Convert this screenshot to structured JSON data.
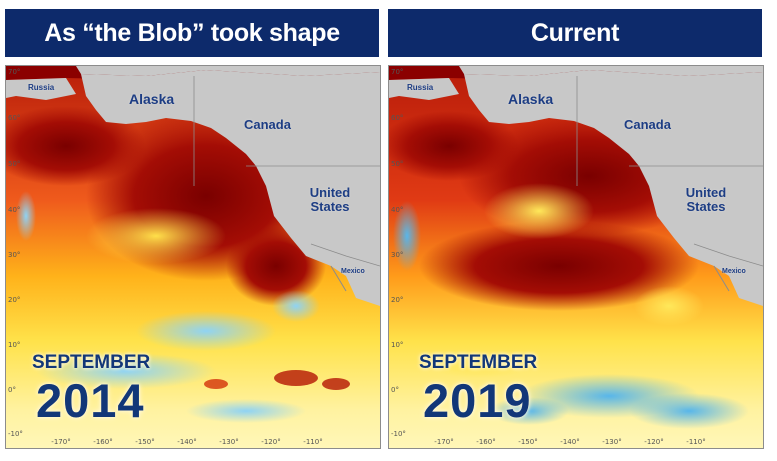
{
  "panels": [
    {
      "title": "As “the Blob” took shape",
      "month": "SEPTEMBER",
      "year": "2014"
    },
    {
      "title": "Current",
      "month": "SEPTEMBER",
      "year": "2019"
    }
  ],
  "regions": {
    "russia": "Russia",
    "alaska": "Alaska",
    "canada": "Canada",
    "us": "United States",
    "mexico": "Mexico"
  },
  "lat_ticks": [
    "70°",
    "60°",
    "50°",
    "40°",
    "30°",
    "20°",
    "10°",
    "0°",
    "-10°"
  ],
  "lon_ticks": [
    "-170°",
    "-160°",
    "-150°",
    "-140°",
    "-130°",
    "-120°",
    "-110°"
  ],
  "colors": {
    "header_bg": "#0d2a6b",
    "land": "#c8c8c8",
    "hot": "#8b0000",
    "warm": "#e8431a",
    "mild": "#ffd21f",
    "cool": "#7fc8ee"
  }
}
